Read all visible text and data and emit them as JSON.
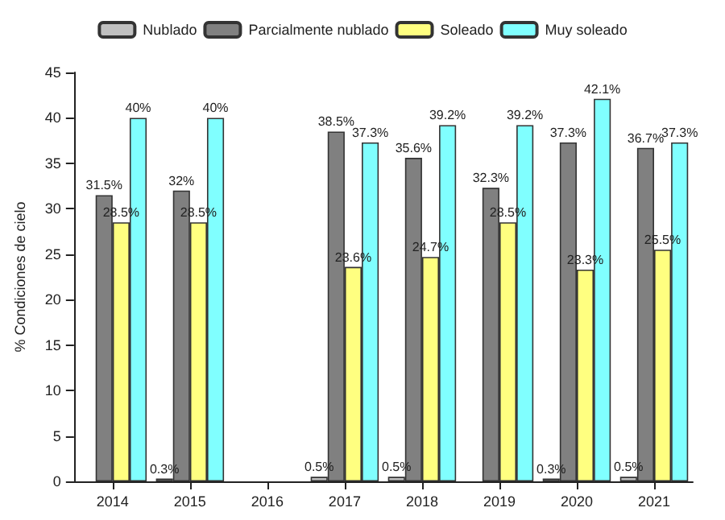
{
  "chart_data": {
    "type": "bar",
    "ylabel": "% Condiciones de cielo",
    "categories": [
      "2014",
      "2015",
      "2016",
      "2017",
      "2018",
      "2019",
      "2020",
      "2021"
    ],
    "series": [
      {
        "name": "Nublado",
        "color": "#c0c0c0",
        "values": [
          null,
          0.3,
          null,
          0.5,
          0.5,
          null,
          0.3,
          0.5
        ],
        "value_labels": [
          null,
          "0.3%",
          null,
          "0.5%",
          "0.5%",
          null,
          "0.3%",
          "0.5%"
        ]
      },
      {
        "name": "Parcialmente nublado",
        "color": "#808080",
        "values": [
          31.5,
          32,
          null,
          38.5,
          35.6,
          32.3,
          37.3,
          36.7
        ],
        "value_labels": [
          "31.5%",
          "32%",
          null,
          "38.5%",
          "35.6%",
          "32.3%",
          "37.3%",
          "36.7%"
        ]
      },
      {
        "name": "Soleado",
        "color": "#ffff80",
        "values": [
          28.5,
          28.5,
          null,
          23.6,
          24.7,
          28.5,
          23.3,
          25.5
        ],
        "value_labels": [
          "28.5%",
          "28.5%",
          null,
          "23.6%",
          "24.7%",
          "28.5%",
          "23.3%",
          "25.5%"
        ]
      },
      {
        "name": "Muy soleado",
        "color": "#80ffff",
        "values": [
          40,
          40,
          null,
          37.3,
          39.2,
          39.2,
          42.1,
          37.3
        ],
        "value_labels": [
          "40%",
          "40%",
          null,
          "37.3%",
          "39.2%",
          "39.2%",
          "42.1%",
          "37.3%"
        ]
      }
    ],
    "ylim": [
      0,
      45
    ],
    "yticks": [
      0,
      5,
      10,
      15,
      20,
      25,
      30,
      35,
      40,
      45
    ],
    "grid": false,
    "legend": "top"
  }
}
